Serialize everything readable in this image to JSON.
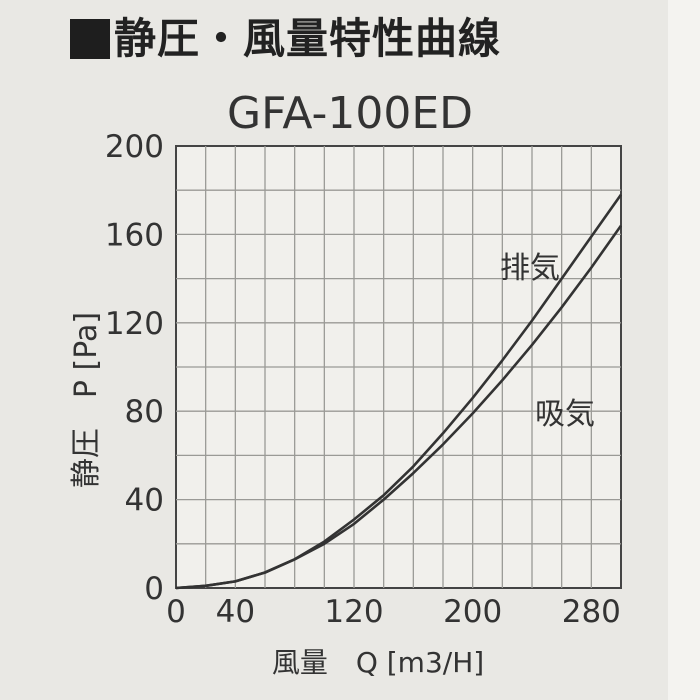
{
  "header": {
    "title": "静圧・風量特性曲線"
  },
  "chart_data": {
    "type": "line",
    "title": "GFA-100ED",
    "xlabel": "風量　Q [m3/H]",
    "ylabel": "静圧　P [Pa]",
    "xlim": [
      0,
      300
    ],
    "ylim": [
      0,
      200
    ],
    "x_ticks": [
      0,
      40,
      120,
      200,
      280
    ],
    "y_ticks": [
      0,
      40,
      80,
      120,
      160,
      200
    ],
    "grid": true,
    "series": [
      {
        "name": "排気",
        "color": "#333333",
        "x": [
          0,
          20,
          40,
          60,
          80,
          100,
          120,
          140,
          160,
          180,
          200,
          220,
          240,
          260,
          280,
          300
        ],
        "y": [
          0,
          1,
          3,
          7,
          13,
          21,
          31,
          42,
          55,
          70,
          86,
          103,
          121,
          140,
          159,
          178
        ]
      },
      {
        "name": "吸気",
        "color": "#333333",
        "x": [
          0,
          20,
          40,
          60,
          80,
          100,
          120,
          140,
          160,
          180,
          200,
          220,
          240,
          260,
          280,
          300
        ],
        "y": [
          0,
          1,
          3,
          7,
          13,
          20,
          29,
          40,
          52,
          65,
          79,
          94,
          110,
          127,
          145,
          164
        ]
      }
    ]
  }
}
